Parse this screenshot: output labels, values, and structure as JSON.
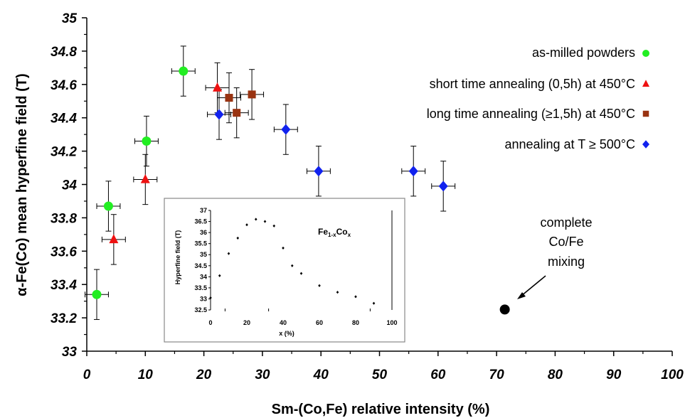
{
  "chart_data": [
    {
      "type": "scatter",
      "title": "",
      "xlabel": "Sm-(Co,Fe) relative intensity (%)",
      "ylabel": "α-Fe(Co) mean hyperfine field (T)",
      "xlim": [
        0,
        100
      ],
      "ylim": [
        33,
        35
      ],
      "xticks": [
        "0",
        "10",
        "20",
        "30",
        "40",
        "50",
        "60",
        "70",
        "80",
        "90",
        "100"
      ],
      "yticks": [
        "33",
        "33.2",
        "33.4",
        "33.6",
        "33.8",
        "34",
        "34.2",
        "34.4",
        "34.6",
        "34.8",
        "35"
      ],
      "grid": false,
      "legend_position": "top-right",
      "series": [
        {
          "name": "as-milled powders",
          "marker": "circle",
          "color": "#22ee22",
          "points": [
            {
              "x": 1.7,
              "y": 33.34,
              "xerr": 2,
              "yerr": 0.15
            },
            {
              "x": 3.7,
              "y": 33.87,
              "xerr": 2,
              "yerr": 0.15
            },
            {
              "x": 10.2,
              "y": 34.26,
              "xerr": 2,
              "yerr": 0.15
            },
            {
              "x": 16.5,
              "y": 34.68,
              "xerr": 2,
              "yerr": 0.15
            }
          ]
        },
        {
          "name": "short time annealing (0,5h) at 450°C",
          "marker": "triangle",
          "color": "#ee1111",
          "points": [
            {
              "x": 4.6,
              "y": 33.67,
              "xerr": 2,
              "yerr": 0.15
            },
            {
              "x": 10.0,
              "y": 34.03,
              "xerr": 2,
              "yerr": 0.15
            },
            {
              "x": 22.3,
              "y": 34.58,
              "xerr": 2,
              "yerr": 0.15
            }
          ]
        },
        {
          "name": "long time annealing (≥1,5h) at 450°C",
          "marker": "square",
          "color": "#993311",
          "points": [
            {
              "x": 24.3,
              "y": 34.52,
              "xerr": 2,
              "yerr": 0.15
            },
            {
              "x": 25.6,
              "y": 34.43,
              "xerr": 2,
              "yerr": 0.15
            },
            {
              "x": 28.2,
              "y": 34.54,
              "xerr": 2,
              "yerr": 0.15
            }
          ]
        },
        {
          "name": "annealing at T ≥ 500°C",
          "marker": "diamond",
          "color": "#1122ee",
          "points": [
            {
              "x": 22.6,
              "y": 34.42,
              "xerr": 2,
              "yerr": 0.15
            },
            {
              "x": 34.0,
              "y": 34.33,
              "xerr": 2,
              "yerr": 0.15
            },
            {
              "x": 39.6,
              "y": 34.08,
              "xerr": 2,
              "yerr": 0.15
            },
            {
              "x": 55.8,
              "y": 34.08,
              "xerr": 2,
              "yerr": 0.15
            },
            {
              "x": 60.9,
              "y": 33.99,
              "xerr": 2,
              "yerr": 0.15
            }
          ]
        },
        {
          "name": "",
          "marker": "circle",
          "color": "#000000",
          "points": [
            {
              "x": 71.4,
              "y": 33.25
            }
          ]
        }
      ],
      "annotations": [
        "complete",
        "Co/Fe",
        "mixing"
      ]
    },
    {
      "type": "scatter",
      "title": "",
      "formula_main": "Fe",
      "formula_sub1": "1-x",
      "formula_mid": "Co",
      "formula_sub2": "x",
      "xlabel": "x (%)",
      "ylabel": "Hyperfine field (T)",
      "xlim": [
        0,
        100
      ],
      "ylim": [
        32.5,
        37
      ],
      "xticks": [
        "0",
        "20",
        "40",
        "60",
        "80",
        "100"
      ],
      "yticks": [
        "32.5",
        "33",
        "33.5",
        "34",
        "34.5",
        "35",
        "35.5",
        "36",
        "36.5",
        "37"
      ],
      "grid": false,
      "series": [
        {
          "marker": "diamond",
          "color": "#000000",
          "x": [
            0,
            5,
            10,
            15,
            20,
            25,
            30,
            35,
            40,
            45,
            50,
            60,
            70,
            80,
            90
          ],
          "y": [
            33.05,
            34.05,
            35.05,
            35.75,
            36.35,
            36.6,
            36.5,
            36.3,
            35.3,
            34.5,
            34.15,
            33.6,
            33.3,
            33.1,
            32.8
          ]
        }
      ]
    }
  ]
}
